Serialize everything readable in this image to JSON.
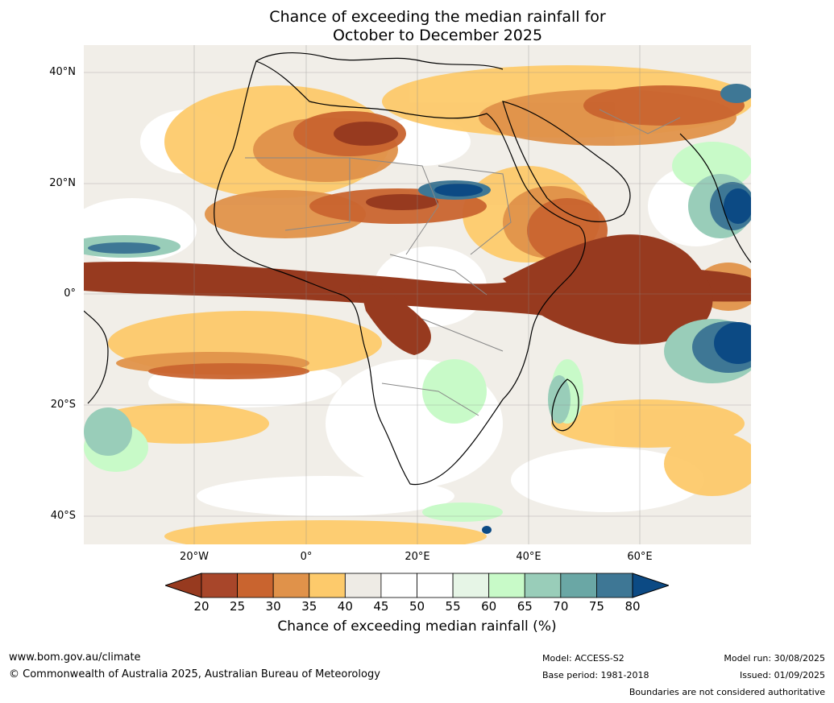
{
  "title": {
    "line1": "Chance of exceeding the median rainfall for",
    "line2": "October to December 2025"
  },
  "map": {
    "region": "Africa",
    "latitude_labels": [
      "40°N",
      "20°N",
      "0°",
      "20°S",
      "40°S"
    ],
    "longitude_labels": [
      "20°W",
      "0°",
      "20°E",
      "40°E",
      "60°E"
    ]
  },
  "legend": {
    "ticks": [
      "20",
      "25",
      "30",
      "35",
      "40",
      "45",
      "50",
      "55",
      "60",
      "65",
      "70",
      "75",
      "80"
    ],
    "colors": [
      "#973a1f",
      "#a8462a",
      "#c9642f",
      "#e0924a",
      "#fdca6b",
      "#eeebe5",
      "#ffffff",
      "#ffffff",
      "#e6f5e6",
      "#c8fac8",
      "#99cdb9",
      "#6aa7a5",
      "#3e7795",
      "#0c4a84"
    ],
    "title": "Chance of exceeding median rainfall (%)"
  },
  "footer": {
    "website": "www.bom.gov.au/climate",
    "copyright": "© Commonwealth of Australia 2025, Australian Bureau of Meteorology",
    "model": "Model: ACCESS-S2",
    "base_period": "Base period: 1981-2018",
    "model_run": "Model run: 30/08/2025",
    "issued": "Issued: 01/09/2025",
    "disclaimer": "Boundaries are not considered authoritative"
  }
}
